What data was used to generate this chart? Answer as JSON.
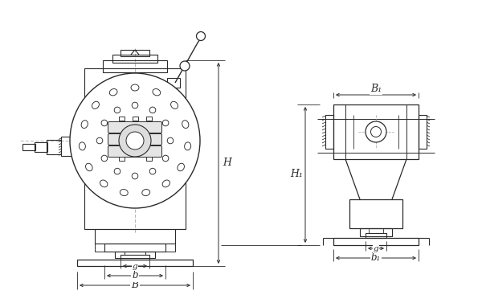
{
  "bg_color": "#ffffff",
  "line_color": "#2a2a2a",
  "dim_color": "#2a2a2a",
  "fig_width": 6.0,
  "fig_height": 3.77,
  "dpi": 100,
  "labels": {
    "H": "H",
    "H1": "H₁",
    "B": "B",
    "b": "b",
    "g": "g",
    "B1": "B₁",
    "b1": "b₁",
    "g2": "g"
  }
}
